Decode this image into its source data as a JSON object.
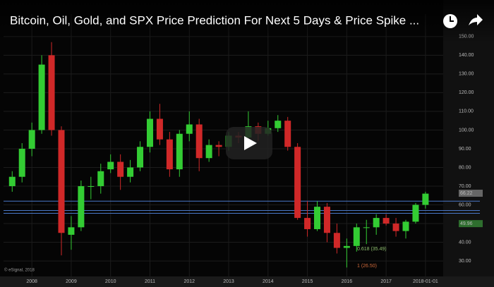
{
  "video": {
    "title": "Bitcoin, Oil, Gold, and SPX Price Prediction For Next 5 Days & Price Spike ..."
  },
  "chart_data": {
    "type": "candlestick",
    "copyright": "© eSignal, 2018",
    "xlim": [
      2007.28,
      2018.45
    ],
    "xticks": [
      2008,
      2009,
      2010,
      2011,
      2012,
      2013,
      2014,
      2015,
      2016,
      2017,
      {
        "value": 2018,
        "label": "2018-01-01"
      }
    ],
    "ylim": [
      25.5,
      162
    ],
    "yticks": [
      {
        "value": 30,
        "label": "30.00"
      },
      {
        "value": 40,
        "label": "40.00"
      },
      {
        "value": 50,
        "label": "50.00"
      },
      {
        "value": 60,
        "label": "60.00"
      },
      {
        "value": 70,
        "label": "70.00"
      },
      {
        "value": 80,
        "label": "80.00"
      },
      {
        "value": 90,
        "label": "90.00"
      },
      {
        "value": 100,
        "label": "100.00"
      },
      {
        "value": 110,
        "label": "110.00"
      },
      {
        "value": 120,
        "label": "120.00"
      },
      {
        "value": 130,
        "label": "130.00"
      },
      {
        "value": 140,
        "label": "140.00"
      },
      {
        "value": 150,
        "label": "150.00"
      }
    ],
    "up_color": "#33cc33",
    "down_color": "#d02828",
    "levels": [
      62,
      57,
      55.5
    ],
    "level_color": "#4a78c8",
    "price_tags": [
      {
        "value": 66.22,
        "color": "#666666"
      },
      {
        "value": 49.96,
        "color": "#2e6e2e"
      }
    ],
    "annotations": [
      "0.618 (35.49)",
      "1 (26.50)"
    ],
    "series": {
      "x": [
        2007.5,
        2007.75,
        2008,
        2008.25,
        2008.5,
        2008.75,
        2009,
        2009.25,
        2009.5,
        2009.75,
        2010,
        2010.25,
        2010.5,
        2010.75,
        2011,
        2011.25,
        2011.5,
        2011.75,
        2012,
        2012.25,
        2012.5,
        2012.75,
        2013,
        2013.25,
        2013.5,
        2013.75,
        2014,
        2014.25,
        2014.5,
        2014.75,
        2015,
        2015.25,
        2015.5,
        2015.75,
        2016,
        2016.25,
        2016.5,
        2016.75,
        2017,
        2017.25,
        2017.5,
        2017.75,
        2018
      ],
      "open": [
        70,
        75,
        90,
        100,
        140,
        100,
        44,
        48,
        70,
        70,
        79,
        83,
        75,
        80,
        91,
        106,
        95,
        79,
        98,
        103,
        85,
        92,
        91,
        97,
        96,
        102,
        98,
        101,
        105,
        91,
        53,
        47,
        59,
        45,
        37,
        38,
        48,
        48,
        53,
        50,
        46,
        51,
        60
      ],
      "high": [
        78,
        93,
        104,
        140,
        147,
        102,
        54,
        73,
        75,
        82,
        87,
        87,
        84,
        94,
        110,
        114,
        99,
        100,
        110,
        106,
        95,
        94,
        99,
        99,
        110,
        104,
        105,
        108,
        107,
        93,
        62,
        62,
        61,
        50,
        42,
        50,
        52,
        55,
        55,
        53,
        52,
        61,
        67
      ],
      "low": [
        67,
        72,
        86,
        98,
        97,
        33,
        36,
        46,
        63,
        66,
        77,
        68,
        72,
        78,
        88,
        92,
        75,
        75,
        94,
        78,
        83,
        86,
        89,
        93,
        94,
        94,
        97,
        99,
        89,
        52,
        43,
        46,
        40,
        34,
        26.5,
        35,
        39,
        44,
        49,
        43,
        42,
        50,
        58
      ],
      "close": [
        75,
        90,
        100,
        135,
        100,
        45,
        48,
        70,
        70,
        78,
        83,
        75,
        80,
        91,
        106,
        95,
        79,
        98,
        103,
        85,
        92,
        91,
        97,
        96,
        102,
        98,
        101,
        105,
        91,
        53,
        47,
        59,
        45,
        37,
        38,
        48,
        48,
        53,
        50,
        46,
        51,
        60,
        66
      ]
    }
  }
}
